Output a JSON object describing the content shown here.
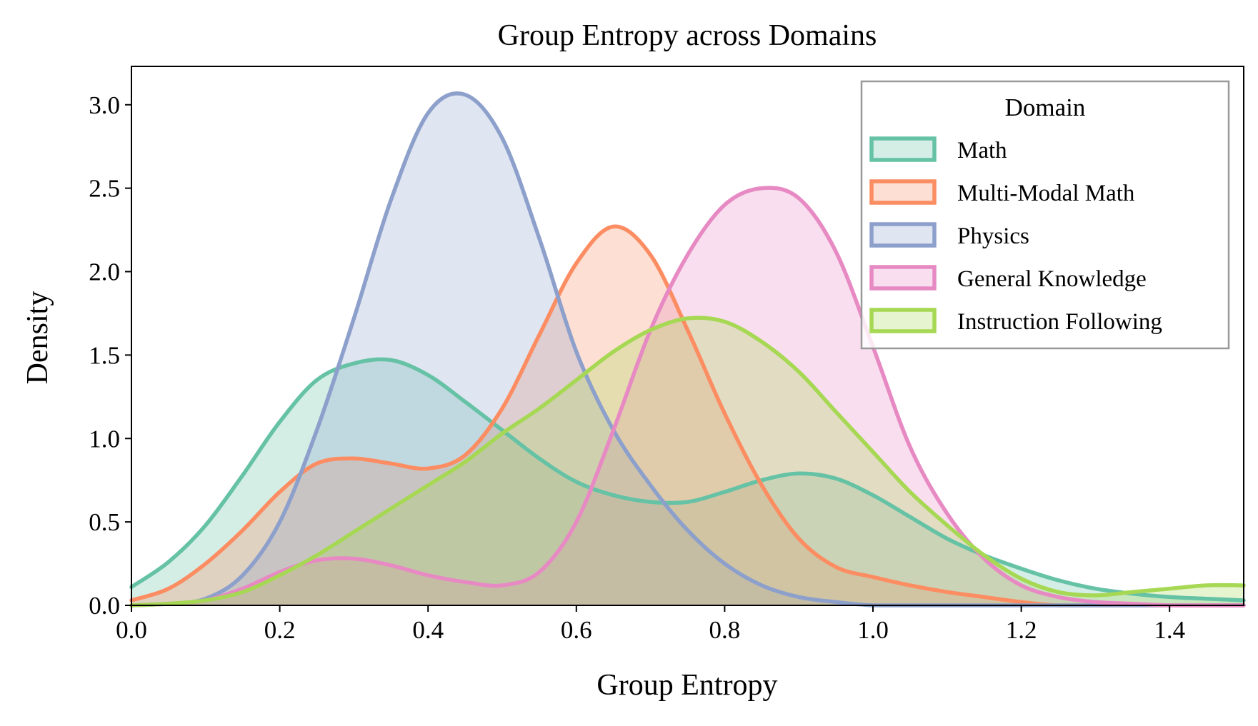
{
  "chart_data": {
    "type": "area",
    "title": "Group Entropy across Domains",
    "xlabel": "Group Entropy",
    "ylabel": "Density",
    "xlim": [
      0.0,
      1.5
    ],
    "ylim": [
      0.0,
      3.23
    ],
    "xticks": [
      0.0,
      0.2,
      0.4,
      0.6,
      0.8,
      1.0,
      1.2,
      1.4
    ],
    "xtick_labels": [
      "0.0",
      "0.2",
      "0.4",
      "0.6",
      "0.8",
      "1.0",
      "1.2",
      "1.4"
    ],
    "yticks": [
      0.0,
      0.5,
      1.0,
      1.5,
      2.0,
      2.5,
      3.0
    ],
    "ytick_labels": [
      "0.0",
      "0.5",
      "1.0",
      "1.5",
      "2.0",
      "2.5",
      "3.0"
    ],
    "grid": false,
    "legend": {
      "title": "Domain",
      "placement": "top-right"
    },
    "x": [
      0.0,
      0.05,
      0.1,
      0.15,
      0.2,
      0.25,
      0.3,
      0.35,
      0.4,
      0.45,
      0.5,
      0.55,
      0.6,
      0.65,
      0.7,
      0.75,
      0.8,
      0.85,
      0.9,
      0.95,
      1.0,
      1.05,
      1.1,
      1.15,
      1.2,
      1.25,
      1.3,
      1.35,
      1.4,
      1.45,
      1.5
    ],
    "series": [
      {
        "name": "Math",
        "color": "#66c2a5",
        "values": [
          0.11,
          0.26,
          0.48,
          0.78,
          1.1,
          1.35,
          1.45,
          1.47,
          1.38,
          1.22,
          1.05,
          0.88,
          0.74,
          0.66,
          0.62,
          0.62,
          0.68,
          0.75,
          0.79,
          0.76,
          0.66,
          0.53,
          0.4,
          0.3,
          0.22,
          0.15,
          0.1,
          0.07,
          0.05,
          0.04,
          0.03
        ]
      },
      {
        "name": "Multi-Modal Math",
        "color": "#fc8d62",
        "values": [
          0.03,
          0.1,
          0.25,
          0.45,
          0.68,
          0.85,
          0.88,
          0.85,
          0.82,
          0.9,
          1.18,
          1.62,
          2.05,
          2.27,
          2.1,
          1.65,
          1.15,
          0.72,
          0.4,
          0.23,
          0.17,
          0.12,
          0.08,
          0.05,
          0.02,
          0.0,
          0.0,
          0.0,
          0.0,
          0.0,
          0.0
        ]
      },
      {
        "name": "Physics",
        "color": "#8da0cb",
        "values": [
          0.0,
          0.01,
          0.04,
          0.18,
          0.5,
          1.05,
          1.72,
          2.43,
          2.95,
          3.06,
          2.8,
          2.2,
          1.52,
          1.05,
          0.72,
          0.45,
          0.25,
          0.12,
          0.05,
          0.02,
          0.0,
          0.0,
          0.0,
          0.0,
          0.0,
          0.0,
          0.0,
          0.0,
          0.0,
          0.0,
          0.0
        ]
      },
      {
        "name": "General Knowledge",
        "color": "#e78ac3",
        "values": [
          0.0,
          0.01,
          0.03,
          0.1,
          0.2,
          0.27,
          0.28,
          0.24,
          0.18,
          0.14,
          0.12,
          0.2,
          0.5,
          1.05,
          1.65,
          2.1,
          2.4,
          2.5,
          2.44,
          2.12,
          1.55,
          0.95,
          0.55,
          0.28,
          0.12,
          0.05,
          0.02,
          0.01,
          0.0,
          0.0,
          0.0
        ]
      },
      {
        "name": "Instruction Following",
        "color": "#a6d854",
        "values": [
          0.0,
          0.01,
          0.03,
          0.08,
          0.18,
          0.3,
          0.44,
          0.58,
          0.72,
          0.86,
          1.03,
          1.18,
          1.35,
          1.52,
          1.65,
          1.72,
          1.7,
          1.58,
          1.4,
          1.16,
          0.92,
          0.68,
          0.48,
          0.3,
          0.16,
          0.08,
          0.06,
          0.08,
          0.1,
          0.12,
          0.12
        ]
      }
    ]
  }
}
